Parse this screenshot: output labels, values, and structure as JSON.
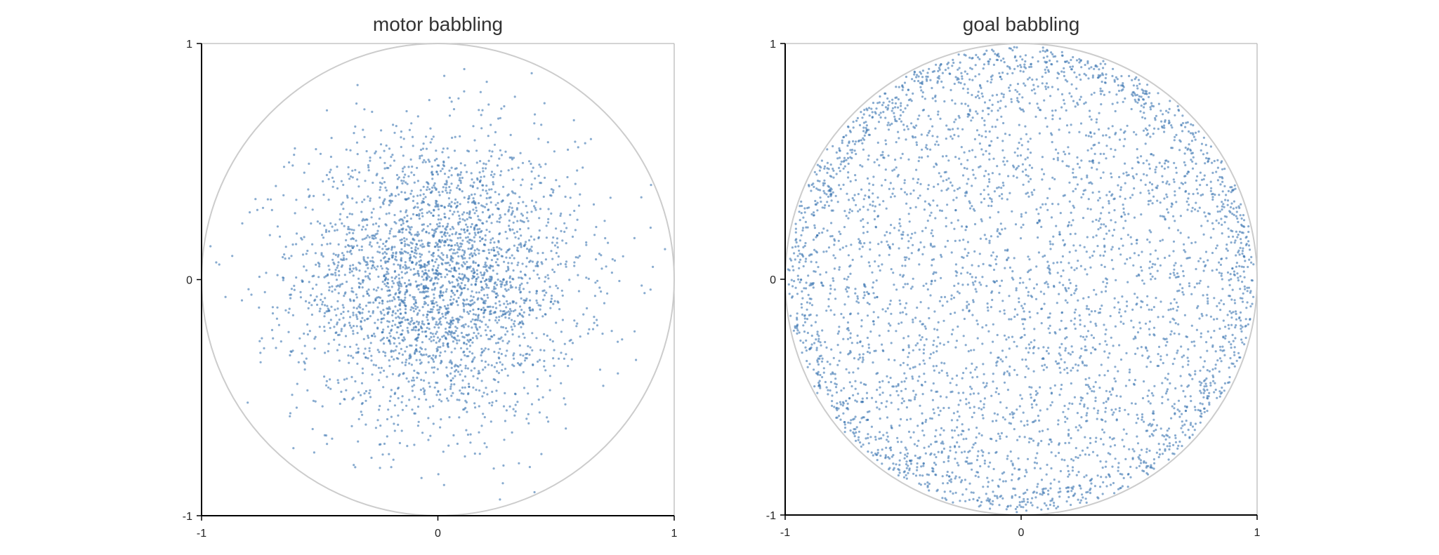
{
  "chart_data": [
    {
      "type": "scatter",
      "title": "motor babbling",
      "xlabel": "",
      "ylabel": "",
      "xlim": [
        -1,
        1
      ],
      "ylim": [
        -1,
        1
      ],
      "xticks": [
        "-1",
        "0",
        "1"
      ],
      "yticks": [
        "-1",
        "0",
        "1"
      ],
      "grid": false,
      "reference_shape": "unit circle",
      "point_color": "#3a75b0",
      "circle_color": "#cccccc",
      "distribution": "concentrated near center, sparse toward edge",
      "approx_point_count": 3000,
      "sample_points": [
        [
          0.0,
          0.05
        ],
        [
          0.1,
          0.1
        ],
        [
          -0.15,
          0.2
        ],
        [
          0.2,
          -0.1
        ],
        [
          -0.3,
          -0.05
        ],
        [
          0.35,
          0.25
        ],
        [
          -0.4,
          0.3
        ],
        [
          0.05,
          -0.35
        ],
        [
          0.45,
          -0.3
        ],
        [
          -0.5,
          -0.2
        ],
        [
          0.6,
          0.1
        ],
        [
          -0.6,
          0.15
        ],
        [
          0.15,
          0.65
        ],
        [
          -0.1,
          -0.7
        ],
        [
          0.7,
          -0.45
        ],
        [
          -0.75,
          -0.35
        ],
        [
          0.55,
          0.55
        ],
        [
          -0.45,
          0.6
        ],
        [
          0.9,
          0.22
        ],
        [
          -0.87,
          0.1
        ]
      ]
    },
    {
      "type": "scatter",
      "title": "goal babbling",
      "xlabel": "",
      "ylabel": "",
      "xlim": [
        -1,
        1
      ],
      "ylim": [
        -1,
        1
      ],
      "xticks": [
        "-1",
        "0",
        "1"
      ],
      "yticks": [
        "-1",
        "0",
        "1"
      ],
      "grid": false,
      "reference_shape": "unit circle",
      "point_color": "#3a75b0",
      "circle_color": "#cccccc",
      "distribution": "roughly uniform over the unit disk, denser along the rim",
      "approx_point_count": 4000,
      "sample_points": [
        [
          0.0,
          0.9
        ],
        [
          0.6,
          0.7
        ],
        [
          0.9,
          0.3
        ],
        [
          0.95,
          -0.2
        ],
        [
          0.7,
          -0.6
        ],
        [
          0.2,
          -0.9
        ],
        [
          -0.3,
          -0.9
        ],
        [
          -0.7,
          -0.65
        ],
        [
          -0.95,
          -0.2
        ],
        [
          -0.9,
          0.4
        ],
        [
          -0.6,
          0.75
        ],
        [
          0.1,
          0.1
        ],
        [
          -0.2,
          -0.3
        ],
        [
          0.4,
          -0.2
        ],
        [
          -0.5,
          0.2
        ],
        [
          0.3,
          0.5
        ],
        [
          -0.1,
          0.6
        ],
        [
          0.55,
          0.0
        ],
        [
          -0.45,
          -0.5
        ],
        [
          0.2,
          -0.55
        ]
      ]
    }
  ]
}
